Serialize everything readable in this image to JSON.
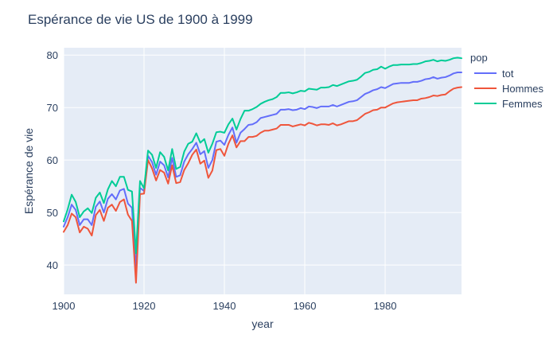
{
  "colors": {
    "plot_bg": "#E5ECF6",
    "grid": "#ffffff",
    "text": "#2a3f5f"
  },
  "chart_data": {
    "type": "line",
    "title": "Espérance de vie US de 1900 à 1999",
    "xlabel": "year",
    "ylabel": "Espérance de vie",
    "xlim": [
      1900,
      1999
    ],
    "ylim": [
      34.4,
      81.4
    ],
    "x_ticks": [
      1900,
      1920,
      1940,
      1960,
      1980
    ],
    "y_ticks": [
      40,
      50,
      60,
      70,
      80
    ],
    "grid": true,
    "legend": {
      "title": "pop",
      "position": "top-right outside"
    },
    "x_start": 1900,
    "series": [
      {
        "name": "tot",
        "color": "#636EFA",
        "values": [
          47.3,
          49.1,
          51.5,
          50.5,
          47.6,
          48.7,
          48.7,
          47.6,
          51.1,
          52.1,
          50.0,
          52.6,
          53.5,
          52.5,
          54.2,
          54.5,
          51.7,
          50.9,
          39.1,
          54.7,
          54.1,
          60.8,
          59.6,
          57.2,
          59.7,
          59.0,
          56.7,
          60.4,
          56.8,
          57.1,
          59.7,
          61.1,
          62.1,
          63.3,
          61.1,
          61.7,
          58.5,
          60.0,
          63.5,
          63.7,
          62.9,
          64.8,
          66.2,
          63.3,
          65.2,
          65.9,
          66.7,
          66.8,
          67.2,
          68.0,
          68.2,
          68.4,
          68.6,
          68.8,
          69.6,
          69.6,
          69.7,
          69.5,
          69.6,
          69.9,
          69.7,
          70.2,
          70.1,
          69.9,
          70.2,
          70.2,
          70.2,
          70.5,
          70.2,
          70.5,
          70.8,
          71.1,
          71.2,
          71.4,
          72.0,
          72.6,
          72.9,
          73.3,
          73.5,
          73.9,
          73.7,
          74.1,
          74.5,
          74.6,
          74.7,
          74.7,
          74.7,
          74.9,
          74.9,
          75.1,
          75.4,
          75.5,
          75.8,
          75.5,
          75.7,
          75.8,
          76.1,
          76.5,
          76.7,
          76.7
        ]
      },
      {
        "name": "Hommes",
        "color": "#EF553B",
        "values": [
          46.3,
          47.6,
          49.8,
          49.1,
          46.2,
          47.3,
          46.9,
          45.6,
          49.5,
          50.5,
          48.4,
          50.9,
          51.5,
          50.3,
          52.0,
          52.5,
          49.6,
          48.4,
          36.6,
          53.5,
          53.6,
          60.0,
          58.4,
          56.1,
          58.1,
          57.6,
          55.5,
          59.0,
          55.6,
          55.8,
          58.1,
          59.4,
          61.0,
          62.0,
          59.3,
          59.9,
          56.6,
          58.0,
          61.9,
          62.1,
          60.8,
          63.1,
          64.7,
          62.4,
          63.6,
          63.6,
          64.4,
          64.4,
          64.6,
          65.2,
          65.6,
          65.6,
          65.8,
          66.0,
          66.7,
          66.7,
          66.7,
          66.4,
          66.6,
          66.8,
          66.6,
          67.1,
          66.9,
          66.6,
          66.8,
          66.8,
          66.7,
          67.0,
          66.6,
          66.8,
          67.1,
          67.4,
          67.4,
          67.6,
          68.2,
          68.8,
          69.1,
          69.5,
          69.6,
          70.0,
          70.0,
          70.4,
          70.8,
          71.0,
          71.1,
          71.2,
          71.3,
          71.4,
          71.4,
          71.7,
          71.8,
          72.0,
          72.3,
          72.2,
          72.4,
          72.5,
          73.1,
          73.6,
          73.8,
          73.9
        ]
      },
      {
        "name": "Femmes",
        "color": "#00CC96",
        "values": [
          48.3,
          50.6,
          53.4,
          52.0,
          49.1,
          50.2,
          50.8,
          49.9,
          52.8,
          53.8,
          51.8,
          54.4,
          56.0,
          55.0,
          56.8,
          56.8,
          54.3,
          54.0,
          42.2,
          56.0,
          54.6,
          61.8,
          61.0,
          58.5,
          61.5,
          60.6,
          58.0,
          62.1,
          58.3,
          58.7,
          61.6,
          63.1,
          63.5,
          65.1,
          63.3,
          64.0,
          61.4,
          63.1,
          65.3,
          65.4,
          65.2,
          66.8,
          67.9,
          65.8,
          67.8,
          69.4,
          69.4,
          69.7,
          70.1,
          70.7,
          71.1,
          71.4,
          71.6,
          72.0,
          72.8,
          72.8,
          72.9,
          72.7,
          72.9,
          73.2,
          73.1,
          73.6,
          73.5,
          73.4,
          73.8,
          73.8,
          73.9,
          74.3,
          74.1,
          74.4,
          74.7,
          75.0,
          75.1,
          75.3,
          75.9,
          76.6,
          76.8,
          77.2,
          77.3,
          77.8,
          77.4,
          77.8,
          78.1,
          78.1,
          78.2,
          78.2,
          78.2,
          78.3,
          78.3,
          78.5,
          78.8,
          78.9,
          79.1,
          78.8,
          79.0,
          78.9,
          79.1,
          79.4,
          79.5,
          79.4
        ]
      }
    ]
  }
}
